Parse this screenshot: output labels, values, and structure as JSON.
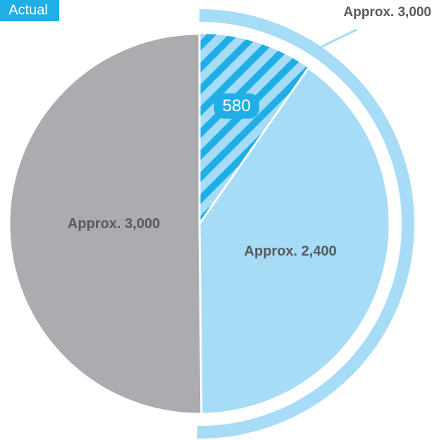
{
  "chart_data": {
    "type": "pie",
    "title": "Actual",
    "values": [
      580,
      2400,
      3000
    ],
    "value_labels": [
      "580",
      "Approx. 2,400",
      "Approx. 3,000"
    ],
    "colors": [
      "#a6dcf6",
      "#a6dcf6",
      "#abacb0"
    ],
    "hatched": [
      true,
      false,
      false
    ],
    "hatch_color": "#1faee6",
    "outer_ring": {
      "value": 3000,
      "label": "Approx. 3,000",
      "color": "#a6dcf6"
    }
  }
}
